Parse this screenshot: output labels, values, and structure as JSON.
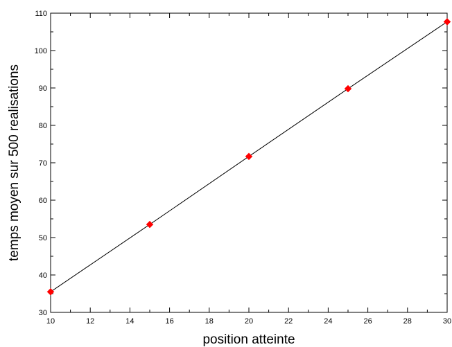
{
  "chart_data": {
    "type": "line",
    "title": "",
    "xlabel": "position atteinte",
    "ylabel": "temps moyen sur 500 realisations",
    "xlim": [
      10,
      30
    ],
    "ylim": [
      30,
      110
    ],
    "xticks": [
      10,
      12,
      14,
      16,
      18,
      20,
      22,
      24,
      26,
      28,
      30
    ],
    "yticks": [
      30,
      40,
      50,
      60,
      70,
      80,
      90,
      100,
      110
    ],
    "grid": false,
    "legend": "none",
    "series": [
      {
        "x": [
          10,
          15,
          20,
          25,
          30
        ],
        "y": [
          35.5,
          53.5,
          71.7,
          89.8,
          107.7
        ],
        "line_color": "#000000",
        "marker": "diamond",
        "marker_color": "#ff0000"
      }
    ]
  }
}
